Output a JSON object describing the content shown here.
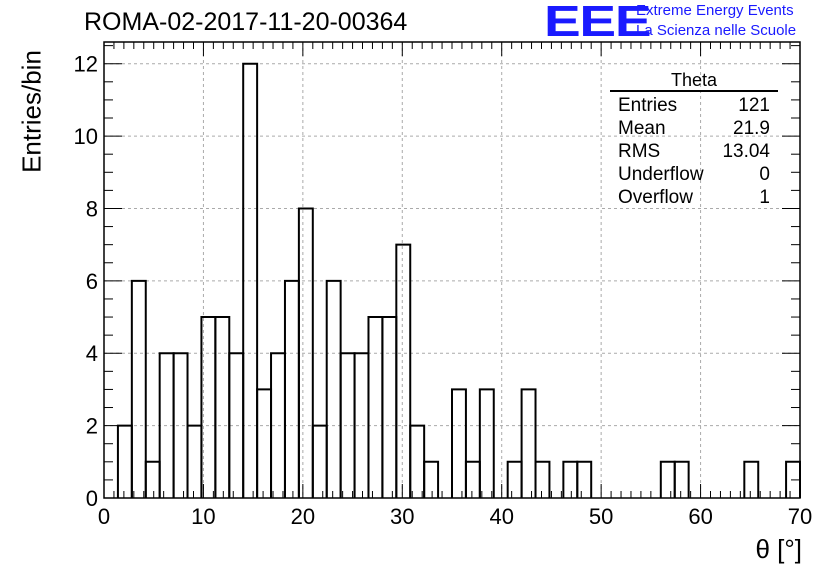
{
  "title": "ROMA-02-2017-11-20-00364",
  "logo": {
    "mark": "EEE",
    "line1": "Extreme Energy Events",
    "line2": "La Scienza nelle Scuole",
    "color": "#1a1aff"
  },
  "stats": {
    "name": "Theta",
    "rows": [
      {
        "label": "Entries",
        "value": "121"
      },
      {
        "label": "Mean",
        "value": "21.9"
      },
      {
        "label": "RMS",
        "value": "13.04"
      },
      {
        "label": "Underflow",
        "value": "0"
      },
      {
        "label": "Overflow",
        "value": "1"
      }
    ]
  },
  "chart_data": {
    "type": "bar",
    "style": "step-histogram",
    "xlabel": "θ [°]",
    "ylabel": "Entries/bin",
    "xlim": [
      0,
      70
    ],
    "ylim": [
      0,
      12.6
    ],
    "bin_width": 1.4,
    "bin_edges_start": 0,
    "values": [
      0,
      2,
      6,
      1,
      4,
      4,
      2,
      5,
      5,
      4,
      12,
      3,
      4,
      6,
      8,
      2,
      6,
      4,
      4,
      5,
      5,
      7,
      2,
      1,
      0,
      3,
      1,
      3,
      0,
      1,
      3,
      1,
      0,
      1,
      1,
      0,
      0,
      0,
      0,
      0,
      1,
      1,
      0,
      0,
      0,
      0,
      1,
      0,
      0,
      1
    ],
    "xticks": [
      0,
      10,
      20,
      30,
      40,
      50,
      60,
      70
    ],
    "yticks": [
      0,
      2,
      4,
      6,
      8,
      10,
      12
    ],
    "grid": true
  }
}
